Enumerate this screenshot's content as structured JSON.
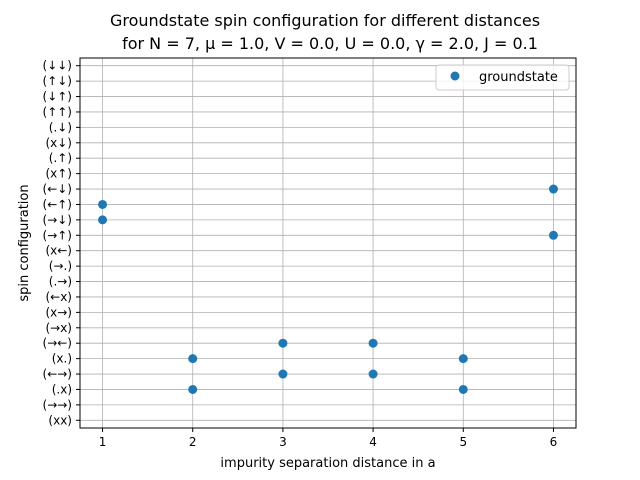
{
  "chart_data": {
    "type": "scatter",
    "title_line1": "Groundstate spin configuration for different distances",
    "title_line2": "for N = 7, μ =  1.0, V = 0.0, U = 0.0, γ = 2.0, J = 0.1",
    "xlabel": "impurity separation distance in a",
    "ylabel": "spin configuration",
    "x_ticks": [
      "1",
      "2",
      "3",
      "4",
      "5",
      "6"
    ],
    "x_range": [
      0.75,
      6.25
    ],
    "y_categories": [
      "(xx)",
      "(→→)",
      "(.x)",
      "(←→)",
      "(x.)",
      "(→←)",
      "(→x)",
      "(x→)",
      "(←x)",
      "(.→)",
      "(→.)",
      "(x←)",
      "(→↑)",
      "(→↓)",
      "(←↑)",
      "(←↓)",
      "(x↑)",
      "(.↑)",
      "(x↓)",
      "(.↓)",
      "(↑↑)",
      "(↓↑)",
      "(↑↓)",
      "(↓↓)"
    ],
    "grid": true,
    "legend_position": "top-right",
    "series": [
      {
        "name": "groundstate",
        "color": "#1f77b4",
        "points": [
          {
            "x": 1,
            "y": "(←↑)"
          },
          {
            "x": 1,
            "y": "(→↓)"
          },
          {
            "x": 2,
            "y": "(x.)"
          },
          {
            "x": 2,
            "y": "(.x)"
          },
          {
            "x": 3,
            "y": "(→←)"
          },
          {
            "x": 3,
            "y": "(←→)"
          },
          {
            "x": 4,
            "y": "(→←)"
          },
          {
            "x": 4,
            "y": "(←→)"
          },
          {
            "x": 5,
            "y": "(x.)"
          },
          {
            "x": 5,
            "y": "(.x)"
          },
          {
            "x": 6,
            "y": "(←↓)"
          },
          {
            "x": 6,
            "y": "(→↑)"
          }
        ]
      }
    ]
  }
}
